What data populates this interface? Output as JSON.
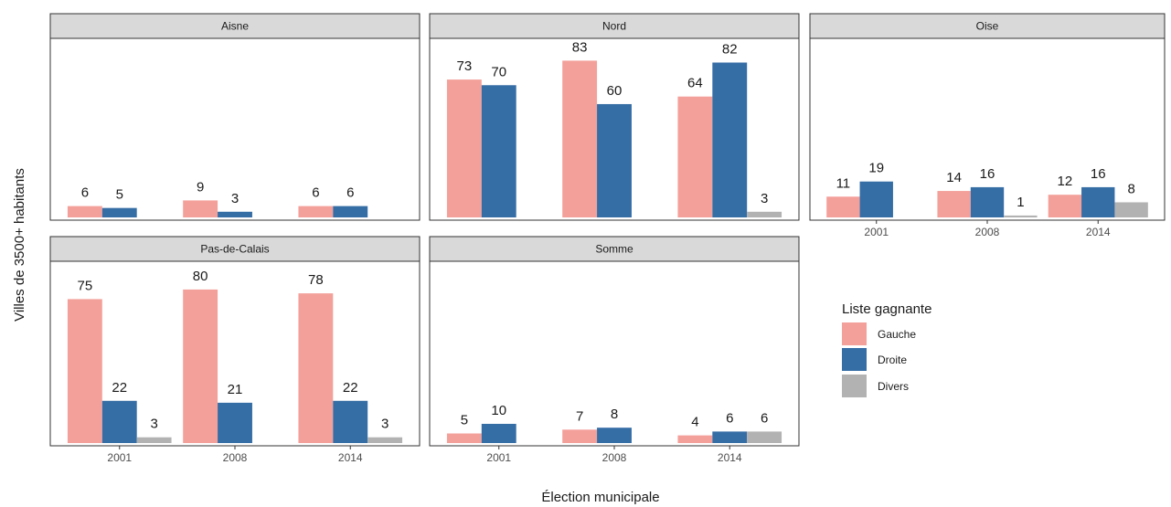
{
  "chart_data": {
    "type": "bar",
    "xlabel": "Élection municipale",
    "ylabel": "Villes de 3500+ habitants",
    "categories": [
      "2001",
      "2008",
      "2014"
    ],
    "facets": [
      {
        "title": "Aisne",
        "values": {
          "Gauche": [
            6,
            9,
            6
          ],
          "Droite": [
            5,
            3,
            6
          ],
          "Divers": [
            null,
            null,
            null
          ]
        }
      },
      {
        "title": "Nord",
        "values": {
          "Gauche": [
            73,
            83,
            64
          ],
          "Droite": [
            70,
            60,
            82
          ],
          "Divers": [
            null,
            null,
            3
          ]
        }
      },
      {
        "title": "Oise",
        "values": {
          "Gauche": [
            11,
            14,
            12
          ],
          "Droite": [
            19,
            16,
            16
          ],
          "Divers": [
            null,
            1,
            8
          ]
        }
      },
      {
        "title": "Pas-de-Calais",
        "values": {
          "Gauche": [
            75,
            80,
            78
          ],
          "Droite": [
            22,
            21,
            22
          ],
          "Divers": [
            3,
            null,
            3
          ]
        }
      },
      {
        "title": "Somme",
        "values": {
          "Gauche": [
            5,
            7,
            4
          ],
          "Droite": [
            10,
            8,
            6
          ],
          "Divers": [
            null,
            null,
            6
          ]
        }
      }
    ],
    "legend": {
      "title": "Liste gagnante",
      "entries": [
        {
          "name": "Gauche",
          "color": "#f4a09a"
        },
        {
          "name": "Droite",
          "color": "#356da5"
        },
        {
          "name": "Divers",
          "color": "#b2b2b2"
        }
      ]
    },
    "ylim": [
      0,
      89
    ],
    "grid": false,
    "legend_position": "right"
  }
}
